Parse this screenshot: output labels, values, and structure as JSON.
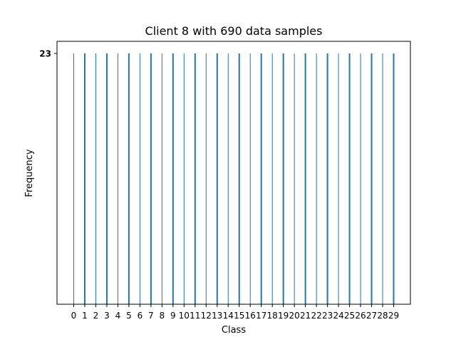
{
  "chart_data": {
    "type": "bar",
    "title": "Client 8 with 690 data samples",
    "xlabel": "Class",
    "ylabel": "Frequency",
    "categories": [
      "0",
      "1",
      "2",
      "3",
      "4",
      "5",
      "6",
      "7",
      "8",
      "9",
      "10",
      "11",
      "12",
      "13",
      "14",
      "15",
      "16",
      "17",
      "18",
      "19",
      "20",
      "21",
      "22",
      "23",
      "24",
      "25",
      "26",
      "27",
      "28",
      "29"
    ],
    "values": [
      23,
      23,
      23,
      23,
      23,
      23,
      23,
      23,
      23,
      23,
      23,
      23,
      23,
      23,
      23,
      23,
      23,
      23,
      23,
      23,
      23,
      23,
      23,
      23,
      23,
      23,
      23,
      23,
      23,
      23
    ],
    "ylim": [
      0,
      23
    ],
    "yticks": [
      "23"
    ],
    "grid": false,
    "bar_color": "#1f77b4"
  }
}
